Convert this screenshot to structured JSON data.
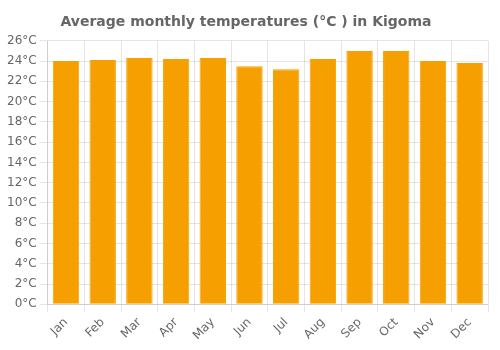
{
  "chart_data": {
    "type": "bar",
    "title": "Average monthly temperatures (°C ) in Kigoma",
    "categories": [
      "Jan",
      "Feb",
      "Mar",
      "Apr",
      "May",
      "Jun",
      "Jul",
      "Aug",
      "Sep",
      "Oct",
      "Nov",
      "Dec"
    ],
    "values": [
      24.0,
      24.1,
      24.3,
      24.2,
      24.3,
      23.5,
      23.2,
      24.2,
      25.0,
      25.0,
      24.0,
      23.8
    ],
    "color": "#F5A000",
    "ylim": [
      0,
      26
    ],
    "yticks": [
      {
        "value": 0,
        "label": "0°C"
      },
      {
        "value": 2,
        "label": "2°C"
      },
      {
        "value": 4,
        "label": "4°C"
      },
      {
        "value": 6,
        "label": "6°C"
      },
      {
        "value": 8,
        "label": "8°C"
      },
      {
        "value": 10,
        "label": "10°C"
      },
      {
        "value": 12,
        "label": "12°C"
      },
      {
        "value": 14,
        "label": "14°C"
      },
      {
        "value": 16,
        "label": "16°C"
      },
      {
        "value": 18,
        "label": "18°C"
      },
      {
        "value": 20,
        "label": "20°C"
      },
      {
        "value": 22,
        "label": "22°C"
      },
      {
        "value": 24,
        "label": "24°C"
      },
      {
        "value": 26,
        "label": "26°C"
      }
    ],
    "grid": true
  }
}
